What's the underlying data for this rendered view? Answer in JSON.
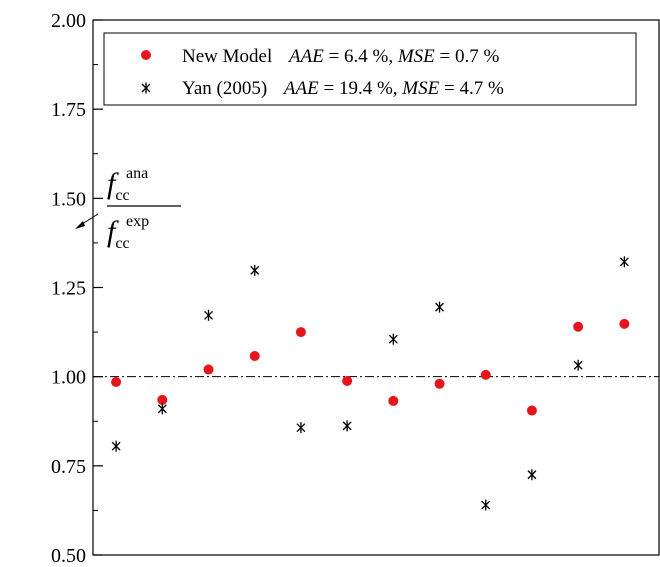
{
  "chart_data": {
    "type": "scatter",
    "title": "",
    "xlabel": "",
    "ylabel": "",
    "ylim": [
      0.5,
      2.0
    ],
    "y_ticks": [
      "0.50",
      "0.75",
      "1.00",
      "1.25",
      "1.50",
      "1.75",
      "2.00"
    ],
    "y_tick_values": [
      0.5,
      0.75,
      1.0,
      1.25,
      1.5,
      1.75,
      2.0
    ],
    "x": [
      1,
      2,
      3,
      4,
      5,
      6,
      7,
      8,
      9,
      10,
      11,
      12
    ],
    "xlim": [
      0.5,
      12.75
    ],
    "reference_line": {
      "y": 1.0,
      "style": "dash-dot"
    },
    "grid": false,
    "legend_position": "top-right",
    "annotation": {
      "numerator_base": "f",
      "numerator_sub": "cc",
      "numerator_sup": "ana",
      "denominator_base": "f",
      "denominator_sub": "cc",
      "denominator_sup": "exp"
    },
    "series": [
      {
        "name": "New Model",
        "marker": "circle",
        "color": "#e8141b",
        "stats": {
          "aae_label": "AAE",
          "aae_text": " = 6.4 %, ",
          "mse_label": "MSE",
          "mse_text": " = 0.7 %"
        },
        "values": [
          0.985,
          0.935,
          1.02,
          1.058,
          1.125,
          0.988,
          0.932,
          0.98,
          1.005,
          0.905,
          1.14,
          1.148
        ]
      },
      {
        "name": "Yan (2005)",
        "marker": "asterisk",
        "color": "#000000",
        "stats": {
          "aae_label": "AAE",
          "aae_text": " = 19.4 %, ",
          "mse_label": "MSE",
          "mse_text": " = 4.7 %"
        },
        "values": [
          0.805,
          0.91,
          1.172,
          1.298,
          0.857,
          0.862,
          1.105,
          1.195,
          0.64,
          0.725,
          1.032,
          1.322
        ]
      }
    ]
  }
}
